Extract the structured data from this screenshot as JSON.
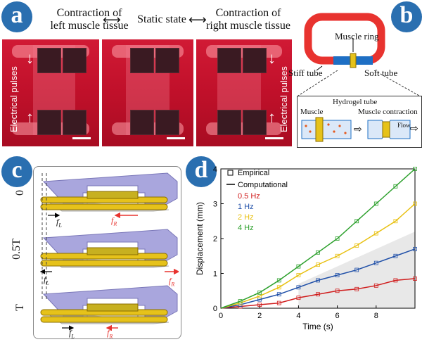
{
  "panel_labels": {
    "a": "a",
    "b": "b",
    "c": "c",
    "d": "d"
  },
  "panel_a": {
    "headers": [
      "Contraction of left muscle tissue",
      "Static state",
      "Contraction of right muscle tissue"
    ],
    "header_lines": [
      [
        "Contraction of",
        "left muscle tissue"
      ],
      [
        "Static state"
      ],
      [
        "Contraction of",
        "right muscle tissue"
      ]
    ],
    "side_label": "Electrical pulses"
  },
  "panel_b": {
    "muscle_ring": "Muscle ring",
    "stiff_tube": "Stiff tube",
    "soft_tube": "Soft tube",
    "hydrogel_tube": "Hydrogel tube",
    "muscle": "Muscle",
    "muscle_contraction": "Muscle contraction",
    "flow": "Flow",
    "colors": {
      "stiff": "#e8332f",
      "soft": "#1e6fc4",
      "muscle": "#e6c21a"
    }
  },
  "panel_c": {
    "rows": [
      "0",
      "0.5T",
      "T"
    ],
    "forces": {
      "left": "f",
      "left_sub": "L",
      "right": "f",
      "right_sub": "R",
      "left2": "f",
      "left2_sub": "L"
    }
  },
  "chart_data": {
    "type": "line",
    "xlabel": "Time (s)",
    "ylabel": "Displacement (mm)",
    "xlim": [
      0,
      10
    ],
    "ylim": [
      0,
      4
    ],
    "xticks": [
      0,
      2,
      4,
      6,
      8
    ],
    "yticks": [
      0,
      1,
      2,
      3,
      4
    ],
    "legend": {
      "placement": "top-left",
      "empirical": "Empirical",
      "computational": "Computational"
    },
    "series": [
      {
        "name": "0.5 Hz",
        "color": "#d01c1c",
        "x": [
          0,
          1,
          2,
          3,
          4,
          5,
          6,
          7,
          8,
          9,
          10
        ],
        "y": [
          0,
          0.05,
          0.1,
          0.15,
          0.3,
          0.4,
          0.5,
          0.55,
          0.65,
          0.8,
          0.85
        ]
      },
      {
        "name": "1 Hz",
        "color": "#1f4fa8",
        "x": [
          0,
          1,
          2,
          3,
          4,
          5,
          6,
          7,
          8,
          9,
          10
        ],
        "y": [
          0,
          0.1,
          0.25,
          0.4,
          0.6,
          0.8,
          0.95,
          1.1,
          1.3,
          1.5,
          1.7
        ]
      },
      {
        "name": "2 Hz",
        "color": "#e8c010",
        "x": [
          0,
          1,
          2,
          3,
          4,
          5,
          6,
          7,
          8,
          9,
          10
        ],
        "y": [
          0,
          0.15,
          0.35,
          0.6,
          0.95,
          1.25,
          1.5,
          1.8,
          2.15,
          2.5,
          3.0
        ]
      },
      {
        "name": "4 Hz",
        "color": "#2ca02c",
        "x": [
          0,
          1,
          2,
          3,
          4,
          5,
          6,
          7,
          8,
          9,
          10
        ],
        "y": [
          0,
          0.2,
          0.45,
          0.8,
          1.2,
          1.6,
          2.0,
          2.5,
          3.0,
          3.5,
          4.0
        ]
      }
    ]
  }
}
